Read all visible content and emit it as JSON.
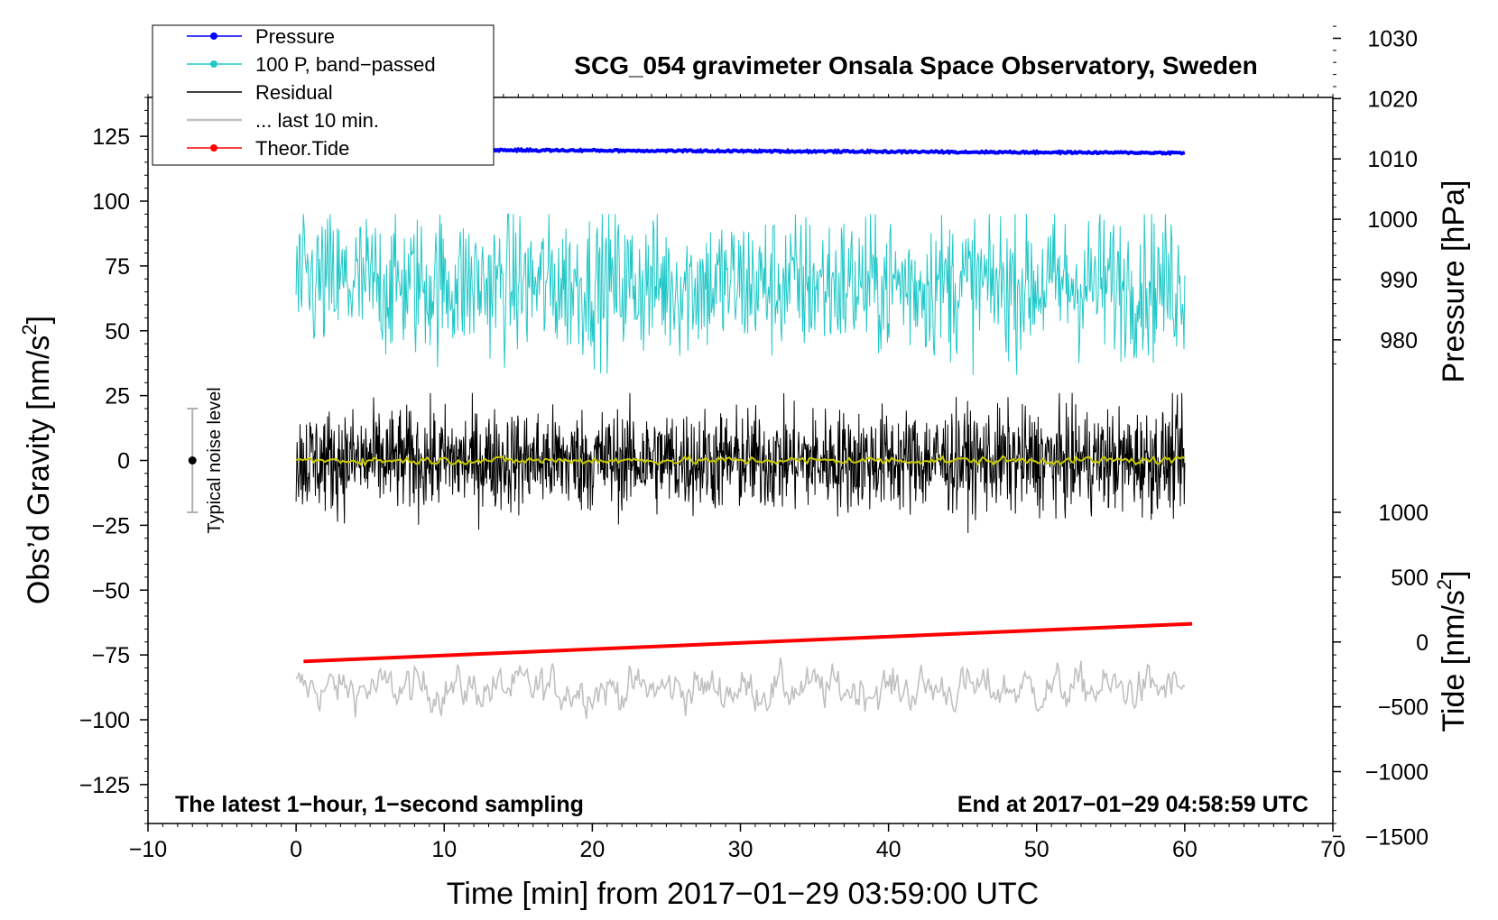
{
  "chart_data": {
    "type": "line",
    "title": "SCG_054 gravimeter Onsala Space Observatory, Sweden",
    "xlabel": "Time [min] from 2017−01−29 03:59:00 UTC",
    "ylabel_left": "Obs’d Gravity [nm/s",
    "ylabel_left_sup": "2",
    "ylabel_left_close": "]",
    "ylabel_pressure": "Pressure [hPa]",
    "ylabel_tide": "Tide [nm/s",
    "ylabel_tide_sup": "2",
    "ylabel_tide_close": "]",
    "xlim": [
      -10,
      70
    ],
    "ylim": [
      -140,
      140
    ],
    "x_ticks": [
      -10,
      0,
      10,
      20,
      30,
      40,
      50,
      60,
      70
    ],
    "x_tick_labels": [
      "−10",
      "0",
      "10",
      "20",
      "30",
      "40",
      "50",
      "60",
      "70"
    ],
    "y_ticks": [
      125,
      100,
      75,
      50,
      25,
      0,
      -25,
      -50,
      -75,
      -100,
      -125
    ],
    "y_tick_labels": [
      "125",
      "100",
      "75",
      "50",
      "25",
      "0",
      "−25",
      "−50",
      "−75",
      "−100",
      "−125"
    ],
    "pressure_ticks": [
      1030,
      1020,
      1010,
      1000,
      990,
      980
    ],
    "pressure_tick_labels": [
      "1030",
      "1020",
      "1010",
      "1000",
      "990",
      "980"
    ],
    "pressure_axis_map": {
      "hpa_at_gravity_0": 960,
      "hpa_per_gravity_unit": 0.43
    },
    "tide_ticks": [
      1000,
      500,
      0,
      -500,
      -1000,
      -1500
    ],
    "tide_tick_labels": [
      "1000",
      "500",
      "0",
      "−500",
      "−1000",
      "−1500"
    ],
    "tide_axis_map": {
      "gravity_at_tide_0": -70,
      "gravity_per_tide_unit": 0.05
    },
    "legend": [
      {
        "label": "Pressure",
        "color": "#0000ff",
        "marker": true
      },
      {
        "label": "100 P, band−passed",
        "color": "#22c8c8",
        "marker": true
      },
      {
        "label": "Residual",
        "color": "#000000",
        "marker": false
      },
      {
        "label": "... last 10 min.",
        "color": "#c0c0c0",
        "marker": false
      },
      {
        "label": "Theor.Tide",
        "color": "#ff0000",
        "marker": true
      }
    ],
    "annotations": {
      "left": "The latest 1−hour, 1−second sampling",
      "right": "End at 2017−01−29 04:58:59 UTC"
    },
    "noise": {
      "label": "Typical noise level",
      "x": -7,
      "center": 0,
      "low": -20,
      "high": 20
    },
    "series": [
      {
        "name": "Pressure",
        "color": "#0000ff",
        "x_start": 0,
        "x_end": 60,
        "level_start": 1011.6,
        "level_end": 1011.0,
        "jitter": 0.6
      },
      {
        "name": "100 P, band−passed",
        "color": "#22c8c8",
        "x_start": 0,
        "x_end": 60,
        "center": 68,
        "amplitude": 14,
        "min": 33,
        "max": 95
      },
      {
        "name": "Residual",
        "color": "#000000",
        "x_start": 0,
        "x_end": 60,
        "center": 0,
        "amplitude": 10,
        "min": -28,
        "max": 26
      },
      {
        "name": "Residual smoothed",
        "color": "#c8c800",
        "x_start": 0,
        "x_end": 60,
        "center": 0,
        "amplitude": 1
      },
      {
        "name": "... last 10 min.",
        "color": "#c0c0c0",
        "x_start": 0,
        "x_end": 60,
        "center": -88,
        "amplitude": 8,
        "min": -109,
        "max": -67
      },
      {
        "name": "Theor.Tide",
        "color": "#ff0000",
        "x_start": 0.5,
        "x_end": 60.5,
        "tide_start": -150,
        "tide_end": 140
      }
    ]
  }
}
